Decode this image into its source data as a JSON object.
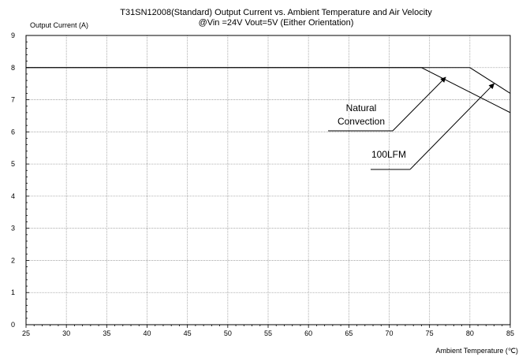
{
  "chart_data": {
    "type": "line",
    "title": "T31SN12008(Standard) Output Current vs. Ambient Temperature and Air Velocity",
    "subtitle": "@Vin =24V Vout=5V (Either Orientation)",
    "ylabel": "Output Current (A)",
    "xlabel": "Ambient Temperature (℃)",
    "xlim": [
      25,
      85
    ],
    "ylim": [
      0,
      9
    ],
    "xticks": [
      25,
      30,
      35,
      40,
      45,
      50,
      55,
      60,
      65,
      70,
      75,
      80,
      85
    ],
    "yticks": [
      0,
      1,
      2,
      3,
      4,
      5,
      6,
      7,
      8,
      9
    ],
    "grid": true,
    "series": [
      {
        "name": "Natural Convection",
        "x": [
          25,
          74,
          85
        ],
        "y": [
          8,
          8,
          6.6
        ]
      },
      {
        "name": "100LFM",
        "x": [
          25,
          80,
          85
        ],
        "y": [
          8,
          8,
          7.2
        ]
      }
    ],
    "annotations": [
      {
        "lines": [
          "Natural",
          "Convection"
        ],
        "target": [
          77,
          7.7
        ]
      },
      {
        "lines": [
          "100LFM"
        ],
        "target": [
          83,
          7.5
        ]
      }
    ]
  }
}
